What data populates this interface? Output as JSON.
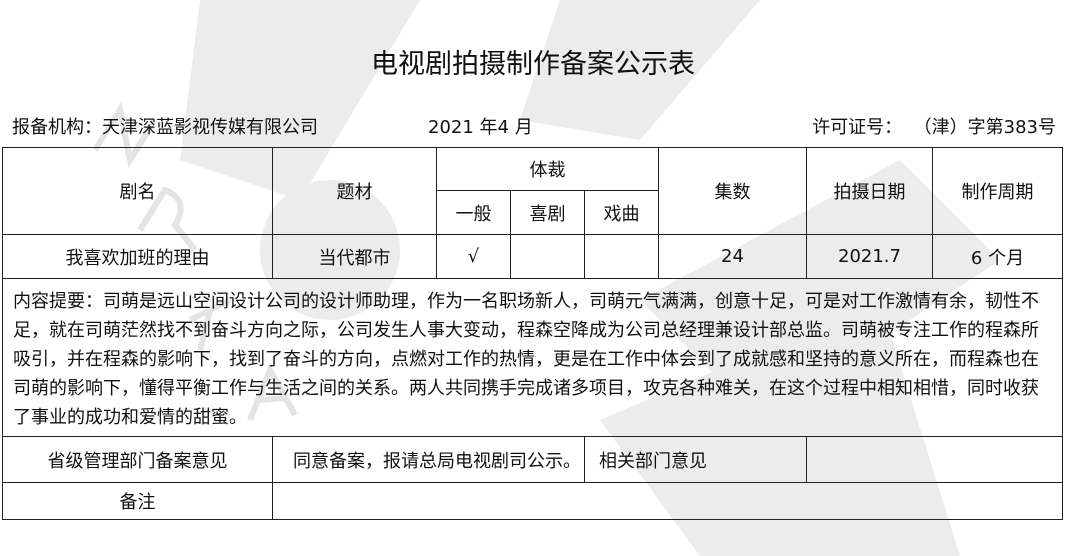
{
  "title": "电视剧拍摄制作备案公示表",
  "meta": {
    "org_label": "报备机构：",
    "org_value": "天津深蓝影视传媒有限公司",
    "date": "2021 年4 月",
    "license_label": "许可证号：",
    "license_value": "（津）字第383号"
  },
  "table": {
    "headers": {
      "name": "剧名",
      "theme": "题材",
      "genre": "体裁",
      "genre_general": "一般",
      "genre_comedy": "喜剧",
      "genre_opera": "戏曲",
      "episodes": "集数",
      "shoot_date": "拍摄日期",
      "cycle": "制作周期"
    },
    "row": {
      "name": "我喜欢加班的理由",
      "theme": "当代都市",
      "genre_general": "√",
      "genre_comedy": "",
      "genre_opera": "",
      "episodes": "24",
      "shoot_date": "2021.7",
      "cycle": "6 个月"
    },
    "summary_label": "内容提要：",
    "summary": "司萌是远山空间设计公司的设计师助理，作为一名职场新人，司萌元气满满，创意十足，可是对工作激情有余，韧性不足，就在司萌茫然找不到奋斗方向之际，公司发生人事大变动，程森空降成为公司总经理兼设计部总监。司萌被专注工作的程森所吸引，并在程森的影响下，找到了奋斗的方向，点燃对工作的热情，更是在工作中体会到了成就感和坚持的意义所在，而程森也在司萌的影响下，懂得平衡工作与生活之间的关系。两人共同携手完成诸多项目，攻克各种难关，在这个过程中相知相惜，同时收获了事业的成功和爱情的甜蜜。",
    "provincial_label": "省级管理部门备案意见",
    "provincial_value": "同意备案，报请总局电视剧司公示。",
    "related_label": "相关部门意见",
    "related_value": "",
    "note_label": "备注",
    "note_value": ""
  },
  "watermark": "NRTA"
}
